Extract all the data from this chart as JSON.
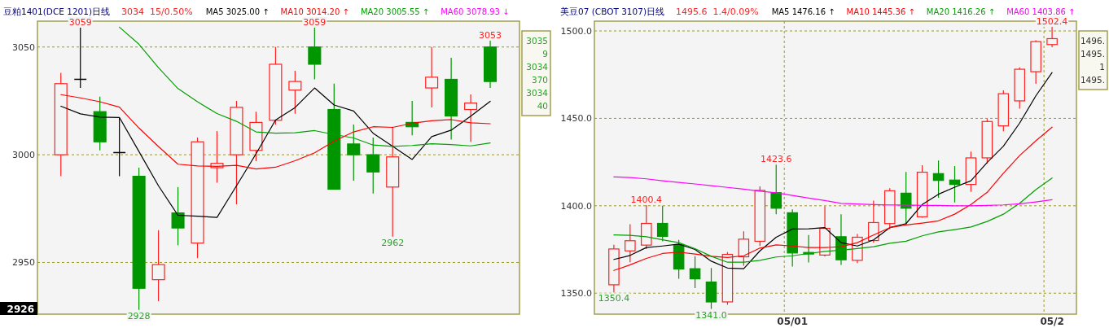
{
  "chart_data": [
    {
      "type": "candlestick",
      "title": "豆粕1401(DCE 1201)日线",
      "subtitle": "3034  15/0.50%",
      "legend": "top",
      "grid": "y",
      "categories": [
        null,
        null,
        null,
        null,
        null,
        null,
        null,
        null,
        null,
        null,
        null,
        null,
        null,
        null,
        null,
        null,
        null,
        null,
        null,
        null,
        null,
        null,
        null
      ],
      "ohlc": [
        [
          3000,
          3038,
          2990,
          3033
        ],
        [
          3035,
          3059,
          3031,
          3035
        ],
        [
          3020,
          3027,
          3002,
          3006
        ],
        [
          3001,
          3017,
          2990,
          3001
        ],
        [
          2990,
          2994,
          2928,
          2938
        ],
        [
          2942,
          2965,
          2932,
          2949
        ],
        [
          2973,
          2985,
          2958,
          2966
        ],
        [
          2959,
          3008,
          2952,
          3006
        ],
        [
          2994,
          3011,
          2987,
          2996
        ],
        [
          3000,
          3025,
          2977,
          3022
        ],
        [
          3002,
          3020,
          2997,
          3015
        ],
        [
          3016,
          3050,
          3014,
          3042
        ],
        [
          3030,
          3039,
          3019,
          3034
        ],
        [
          3050,
          3059,
          3035,
          3042
        ],
        [
          3021,
          3033,
          2984,
          2984
        ],
        [
          3005,
          3014,
          2988,
          3000
        ],
        [
          3000,
          3008,
          2982,
          2992
        ],
        [
          2985,
          3013,
          2962,
          2999
        ],
        [
          3015,
          3025,
          3009,
          3013
        ],
        [
          3031,
          3050,
          3022,
          3036
        ],
        [
          3035,
          3045,
          3007,
          3018
        ],
        [
          3021,
          3028,
          3006,
          3024
        ],
        [
          3050,
          3053,
          3031,
          3034
        ]
      ],
      "colors": [
        "#ff2020",
        "#000000",
        "#009600",
        "#000000",
        "#009600",
        "#ff2020",
        "#009600",
        "#ff2020",
        "#ff2020",
        "#ff2020",
        "#ff2020",
        "#ff2020",
        "#ff2020",
        "#009600",
        "#009600",
        "#009600",
        "#009600",
        "#ff2020",
        "#009600",
        "#ff2020",
        "#009600",
        "#ff2020",
        "#009600"
      ],
      "series": [
        {
          "name": "MA5 3025.00 ↑",
          "color": "#000000",
          "type": "line",
          "values": [
            3022.5,
            3019.0,
            3017.5,
            3017.3,
            3001.5,
            2985.6,
            2971.9,
            2971.5,
            2970.9,
            2985.6,
            3000.4,
            3016.1,
            3021.9,
            3031.0,
            3023.1,
            3020.3,
            3010.0,
            3003.9,
            2997.8,
            3008.4,
            3011.4,
            3017.9,
            3024.8
          ]
        },
        {
          "name": "MA10 3014.20 ↑",
          "color": "#ff0000",
          "type": "line",
          "values": [
            3027.9,
            3026.4,
            3024.6,
            3022.1,
            3012.4,
            3003.8,
            2995.6,
            2994.8,
            2994.6,
            2995.1,
            2993.4,
            2994.2,
            2997.2,
            3000.9,
            3006.3,
            3010.6,
            3013.0,
            3012.7,
            3014.6,
            3015.8,
            3016.3,
            3014.8,
            3014.4
          ]
        },
        {
          "name": "MA20 3005.55 ↑",
          "color": "#00a000",
          "type": "line",
          "values": [
            null,
            null,
            null,
            3059.2,
            3051.3,
            3040.4,
            3030.7,
            3024.6,
            3019.1,
            3015.5,
            3010.6,
            3010.0,
            3010.2,
            3011.2,
            3009.4,
            3007.8,
            3004.5,
            3003.9,
            3004.3,
            3005.1,
            3004.7,
            3004.1,
            3005.5
          ]
        },
        {
          "name": "MA60 3078.93 ↓",
          "color": "#ff00ff",
          "type": "line",
          "values": [
            null,
            null,
            null,
            null,
            null,
            null,
            null,
            null,
            null,
            null,
            null,
            null,
            null,
            null,
            null,
            null,
            null,
            null,
            null,
            null,
            null,
            null,
            null
          ]
        }
      ],
      "ylim": [
        2926,
        3062
      ],
      "yticks": [
        {
          "value": 2926,
          "label": "2926"
        },
        2950,
        3000,
        3050
      ],
      "annotations": [
        {
          "text": "3059",
          "y": 3059
        },
        {
          "text": "3059",
          "y": 3059
        },
        {
          "text": "2928",
          "y": 2928
        },
        {
          "text": "3053",
          "y": 3053
        },
        {
          "text": "2962",
          "y": 2962
        },
        "3035",
        "9",
        "3034",
        "370",
        "3034",
        "40"
      ]
    },
    {
      "type": "candlestick",
      "title": "美豆07 (CBOT 3107)日线",
      "subtitle": "1495.6  1.4/0.09%",
      "legend": "top",
      "grid": true,
      "categories": [
        null,
        null,
        null,
        null,
        null,
        null,
        null,
        null,
        null,
        null,
        null,
        "05/01",
        null,
        null,
        null,
        null,
        null,
        null,
        null,
        null,
        null,
        null,
        null,
        null,
        null,
        null,
        null,
        "05/2"
      ],
      "ohlc": [
        [
          1354.8,
          1377.7,
          1350.4,
          1375.3
        ],
        [
          1374.2,
          1389.5,
          1367.7,
          1380.0
        ],
        [
          1377.5,
          1400.4,
          1375.3,
          1389.9
        ],
        [
          1389.9,
          1400.0,
          1379.7,
          1382.5
        ],
        [
          1377.7,
          1380.5,
          1358.2,
          1363.8
        ],
        [
          1364.0,
          1371.1,
          1352.9,
          1358.2
        ],
        [
          1356.4,
          1364.4,
          1341.0,
          1345.0
        ],
        [
          1345.0,
          1373.5,
          1343.4,
          1372.2
        ],
        [
          1370.8,
          1385.4,
          1365.7,
          1380.9
        ],
        [
          1379.7,
          1411.1,
          1377.0,
          1408.8
        ],
        [
          1407.5,
          1423.6,
          1395.2,
          1398.6
        ],
        [
          1396.0,
          1397.9,
          1365.2,
          1373.0
        ],
        [
          1373.3,
          1383.3,
          1367.6,
          1372.4
        ],
        [
          1371.8,
          1399.7,
          1371.1,
          1387.1
        ],
        [
          1382.3,
          1395.2,
          1366.2,
          1369.1
        ],
        [
          1368.8,
          1383.9,
          1367.2,
          1382.0
        ],
        [
          1380.1,
          1403.0,
          1378.9,
          1390.4
        ],
        [
          1389.8,
          1410.0,
          1386.7,
          1408.6
        ],
        [
          1407.2,
          1419.3,
          1389.0,
          1398.6
        ],
        [
          1393.7,
          1423.2,
          1393.2,
          1419.2
        ],
        [
          1418.4,
          1425.9,
          1404.6,
          1414.5
        ],
        [
          1414.7,
          1422.7,
          1401.9,
          1412.2
        ],
        [
          1412.2,
          1431.0,
          1408.0,
          1427.4
        ],
        [
          1427.4,
          1449.6,
          1424.3,
          1448.2
        ],
        [
          1445.7,
          1466.0,
          1442.6,
          1464.1
        ],
        [
          1460.0,
          1479.2,
          1455.5,
          1478.1
        ],
        [
          1476.7,
          1494.7,
          1469.8,
          1493.9
        ],
        [
          1492.2,
          1502.4,
          1490.7,
          1495.6
        ]
      ],
      "colors": [
        "#ff2020",
        "#ff2020",
        "#ff2020",
        "#009600",
        "#009600",
        "#009600",
        "#009600",
        "#ff2020",
        "#ff2020",
        "#ff2020",
        "#009600",
        "#009600",
        "#009600",
        "#ff2020",
        "#009600",
        "#ff2020",
        "#ff2020",
        "#ff2020",
        "#009600",
        "#ff2020",
        "#009600",
        "#009600",
        "#ff2020",
        "#ff2020",
        "#ff2020",
        "#ff2020",
        "#ff2020",
        "#ff2020"
      ],
      "series": [
        {
          "name": "MA5 1476.16 ↑",
          "color": "#000000",
          "type": "line",
          "values": [
            1369.3,
            1371.6,
            1376.1,
            1377.0,
            1378.1,
            1375.0,
            1368.3,
            1364.4,
            1364.0,
            1374.2,
            1382.0,
            1386.7,
            1386.8,
            1387.5,
            1378.9,
            1377.0,
            1380.5,
            1387.5,
            1389.8,
            1400.7,
            1406.6,
            1410.6,
            1414.3,
            1424.8,
            1434.1,
            1447.3,
            1462.9,
            1476.2
          ]
        },
        {
          "name": "MA10 1445.36 ↑",
          "color": "#ff0000",
          "type": "line",
          "values": [
            1363.0,
            1366.2,
            1369.9,
            1372.7,
            1373.5,
            1372.4,
            1371.1,
            1370.4,
            1371.4,
            1375.8,
            1377.6,
            1377.0,
            1376.1,
            1376.1,
            1376.6,
            1378.9,
            1383.3,
            1387.5,
            1389.0,
            1390.1,
            1391.4,
            1395.2,
            1400.7,
            1407.7,
            1418.6,
            1428.7,
            1437.2,
            1445.0
          ]
        },
        {
          "name": "MA20 1416.26 ↑",
          "color": "#00a000",
          "type": "line",
          "values": [
            1383.3,
            1383.1,
            1382.3,
            1380.5,
            1378.9,
            1375.5,
            1371.1,
            1367.7,
            1367.7,
            1368.8,
            1370.7,
            1371.4,
            1372.7,
            1373.9,
            1374.6,
            1375.5,
            1376.6,
            1378.6,
            1379.7,
            1382.8,
            1385.1,
            1386.4,
            1387.9,
            1391.0,
            1395.2,
            1401.4,
            1409.2,
            1415.9
          ]
        },
        {
          "name": "MA60 1403.86 ↑",
          "color": "#ff00ff",
          "type": "line",
          "values": [
            1416.5,
            1416.2,
            1415.4,
            1414.3,
            1413.4,
            1412.5,
            1411.5,
            1410.5,
            1409.5,
            1408.4,
            1407.4,
            1405.9,
            1404.4,
            1403.0,
            1401.4,
            1401.0,
            1400.7,
            1400.4,
            1400.4,
            1400.2,
            1400.2,
            1400.0,
            1400.0,
            1400.2,
            1400.5,
            1401.1,
            1402.2,
            1403.5
          ]
        }
      ],
      "ylim": [
        1338,
        1505.6
      ],
      "yticks": [
        {
          "value": 1350,
          "label": "1350.0"
        },
        {
          "value": 1400,
          "label": "1400.0"
        },
        {
          "value": 1450,
          "label": "1450.0"
        },
        {
          "value": 1500,
          "label": "1500.0"
        }
      ],
      "annotations": [
        {
          "text": "1400.4",
          "y": 1400.4
        },
        {
          "text": "1423.6",
          "y": 1423.6
        },
        {
          "text": "1502.4",
          "y": 1502.4
        },
        {
          "text": "1341.0",
          "y": 1341.0
        },
        {
          "text": "1350.4",
          "y": 1350.4
        },
        "1496.",
        "1495.",
        "1",
        "1495."
      ]
    }
  ]
}
